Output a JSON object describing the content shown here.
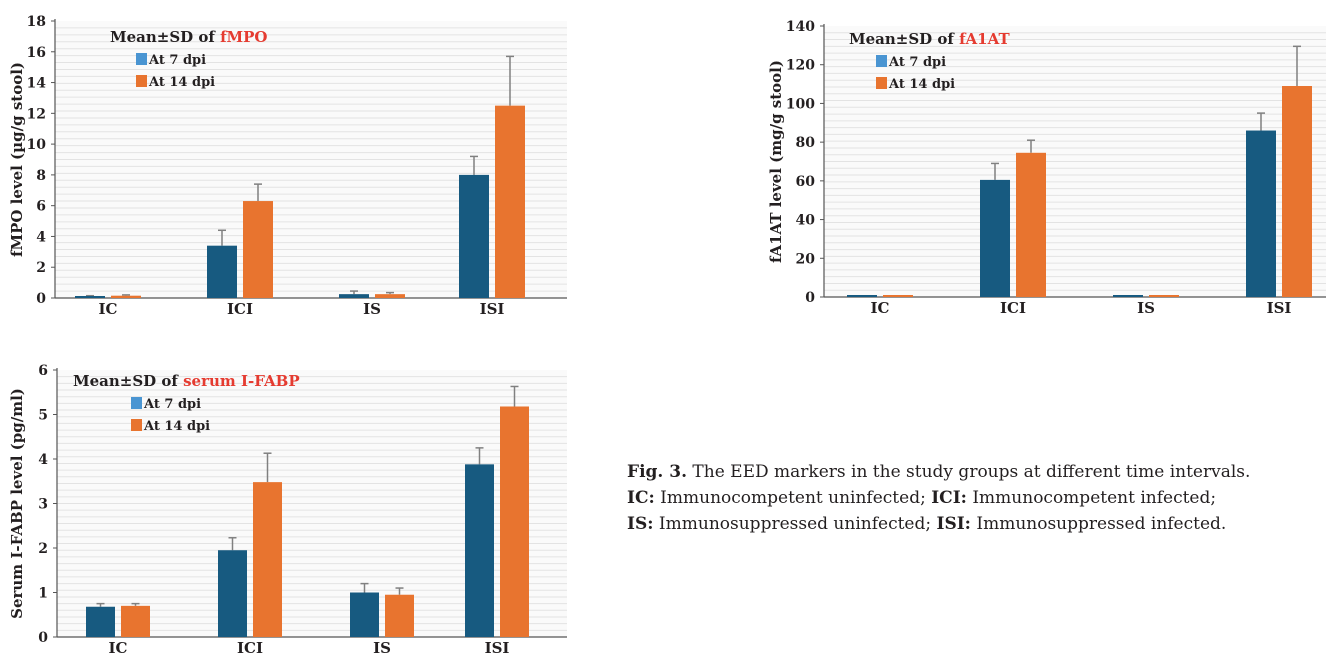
{
  "colors": {
    "series_7": "#175a80",
    "series_14": "#e8742f",
    "legend_7_swatch": "#4a95d2",
    "title_accent": "#e53b30",
    "error_bar": "#808080",
    "text": "#231f20",
    "grid": "#e3e3e3"
  },
  "chart_data": [
    {
      "type": "bar",
      "title_prefix": "Mean±SD of ",
      "title_marker": "fMPO",
      "ylabel": "fMPO level (µg/g stool)",
      "ylim": [
        0,
        18
      ],
      "yticks": [
        0,
        2,
        4,
        6,
        8,
        10,
        12,
        14,
        16,
        18
      ],
      "categories": [
        "IC",
        "ICI",
        "IS",
        "ISI"
      ],
      "series": [
        {
          "name": "At 7 dpi",
          "values": [
            0.1,
            3.4,
            0.25,
            8.0
          ],
          "sd": [
            0.05,
            1.0,
            0.2,
            1.2
          ]
        },
        {
          "name": "At 14 dpi",
          "values": [
            0.15,
            6.3,
            0.25,
            12.5
          ],
          "sd": [
            0.05,
            1.1,
            0.1,
            3.2
          ]
        }
      ]
    },
    {
      "type": "bar",
      "title_prefix": "Mean±SD of ",
      "title_marker": "fA1AT",
      "ylabel": "fA1AT level (mg/g stool)",
      "ylim": [
        0,
        140
      ],
      "yticks": [
        0,
        20,
        40,
        60,
        80,
        100,
        120,
        140
      ],
      "categories": [
        "IC",
        "ICI",
        "IS",
        "ISI"
      ],
      "series": [
        {
          "name": "At 7 dpi",
          "values": [
            0.5,
            60.5,
            0.5,
            86.0
          ],
          "sd": [
            0,
            8.5,
            0,
            9.0
          ]
        },
        {
          "name": "At 14 dpi",
          "values": [
            0.5,
            74.5,
            0.5,
            109.0
          ],
          "sd": [
            0,
            6.5,
            0,
            20.5
          ]
        }
      ]
    },
    {
      "type": "bar",
      "title_prefix": "Mean±SD of ",
      "title_marker": "serum I-FABP",
      "ylabel": "Serum I-FABP level (pg/ml)",
      "ylim": [
        0,
        6
      ],
      "yticks": [
        0,
        1,
        2,
        3,
        4,
        5,
        6
      ],
      "categories": [
        "IC",
        "ICI",
        "IS",
        "ISI"
      ],
      "series": [
        {
          "name": "At 7 dpi",
          "values": [
            0.68,
            1.95,
            1.0,
            3.88
          ],
          "sd": [
            0.07,
            0.28,
            0.2,
            0.37
          ]
        },
        {
          "name": "At 14 dpi",
          "values": [
            0.7,
            3.48,
            0.95,
            5.18
          ],
          "sd": [
            0.05,
            0.65,
            0.15,
            0.45
          ]
        }
      ]
    }
  ],
  "caption": {
    "fig_label": "Fig. 3.",
    "fig_text": " The EED markers in the study groups at different time intervals.",
    "ic_label": "IC:",
    "ic_text": " Immunocompetent uninfected; ",
    "ici_label": "ICI:",
    "ici_text": " Immunocompetent infected;",
    "is_label": "IS:",
    "is_text": " Immunosuppressed uninfected; ",
    "isi_label": "ISI:",
    "isi_text": " Immunosuppressed infected."
  }
}
